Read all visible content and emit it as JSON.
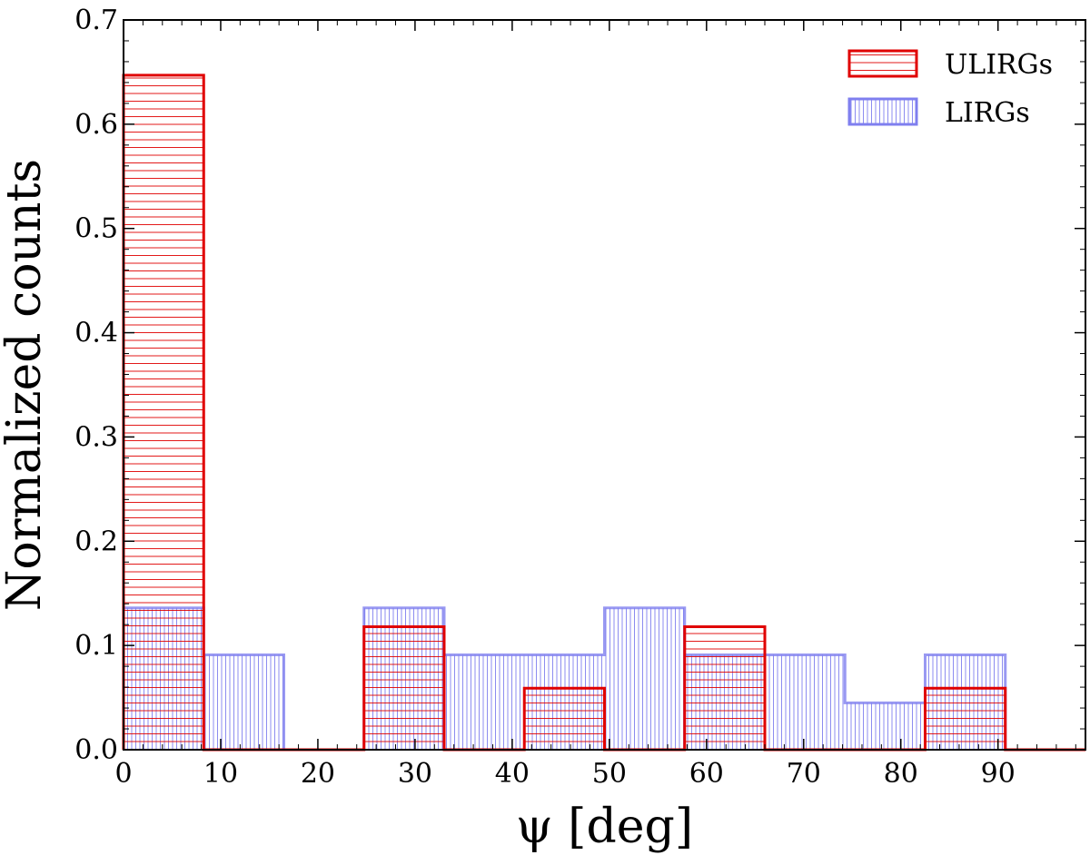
{
  "chart_data": {
    "type": "bar",
    "style": "step-histogram",
    "xlabel": "ψ [deg]",
    "ylabel": "Normalized counts",
    "xlim": [
      0,
      99
    ],
    "ylim": [
      0,
      0.7
    ],
    "xticks": [
      0,
      10,
      20,
      30,
      40,
      50,
      60,
      70,
      80,
      90
    ],
    "yticks": [
      0.0,
      0.1,
      0.2,
      0.3,
      0.4,
      0.5,
      0.6,
      0.7
    ],
    "xtick_labels": [
      "0",
      "10",
      "20",
      "30",
      "40",
      "50",
      "60",
      "70",
      "80",
      "90"
    ],
    "ytick_labels": [
      "0.0",
      "0.1",
      "0.2",
      "0.3",
      "0.4",
      "0.5",
      "0.6",
      "0.7"
    ],
    "bin_edges": [
      0,
      8.25,
      16.5,
      24.75,
      33.0,
      41.25,
      49.5,
      57.75,
      66.0,
      74.25,
      82.5,
      90.75,
      99
    ],
    "series": [
      {
        "name": "ULIRGs",
        "color": "#e00000",
        "hatch": "horizontal",
        "values": [
          0.647,
          0.0,
          0.0,
          0.118,
          0.0,
          0.059,
          0.0,
          0.118,
          0.0,
          0.0,
          0.059,
          0.0
        ]
      },
      {
        "name": "LIRGs",
        "color": "#7f7fef",
        "hatch": "vertical",
        "values": [
          0.136,
          0.091,
          0.0,
          0.136,
          0.091,
          0.091,
          0.136,
          0.091,
          0.091,
          0.045,
          0.091,
          0.0
        ]
      }
    ],
    "legend_position": "top-right",
    "grid": false
  }
}
